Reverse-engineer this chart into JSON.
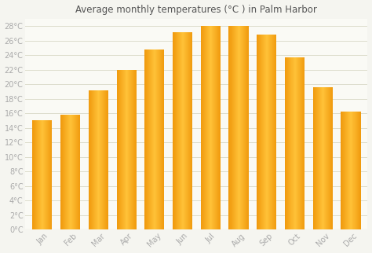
{
  "title": "Average monthly temperatures (°C ) in Palm Harbor",
  "months": [
    "Jan",
    "Feb",
    "Mar",
    "Apr",
    "May",
    "Jun",
    "Jul",
    "Aug",
    "Sep",
    "Oct",
    "Nov",
    "Dec"
  ],
  "values": [
    15.0,
    15.8,
    19.2,
    22.0,
    24.8,
    27.2,
    28.0,
    28.0,
    26.8,
    23.7,
    19.6,
    16.2
  ],
  "bar_color_center": "#FFBB33",
  "bar_color_edge": "#F0960A",
  "background_color": "#f5f5f0",
  "plot_bg_color": "#fafaf5",
  "grid_color": "#ddddcc",
  "tick_color": "#aaaaaa",
  "title_color": "#555555",
  "ylim": [
    0,
    29
  ],
  "yticks": [
    0,
    2,
    4,
    6,
    8,
    10,
    12,
    14,
    16,
    18,
    20,
    22,
    24,
    26,
    28
  ],
  "ytick_labels": [
    "0°C",
    "2°C",
    "4°C",
    "6°C",
    "8°C",
    "10°C",
    "12°C",
    "14°C",
    "16°C",
    "18°C",
    "20°C",
    "22°C",
    "24°C",
    "26°C",
    "28°C"
  ],
  "title_fontsize": 8.5,
  "tick_fontsize": 7,
  "bar_width": 0.7
}
